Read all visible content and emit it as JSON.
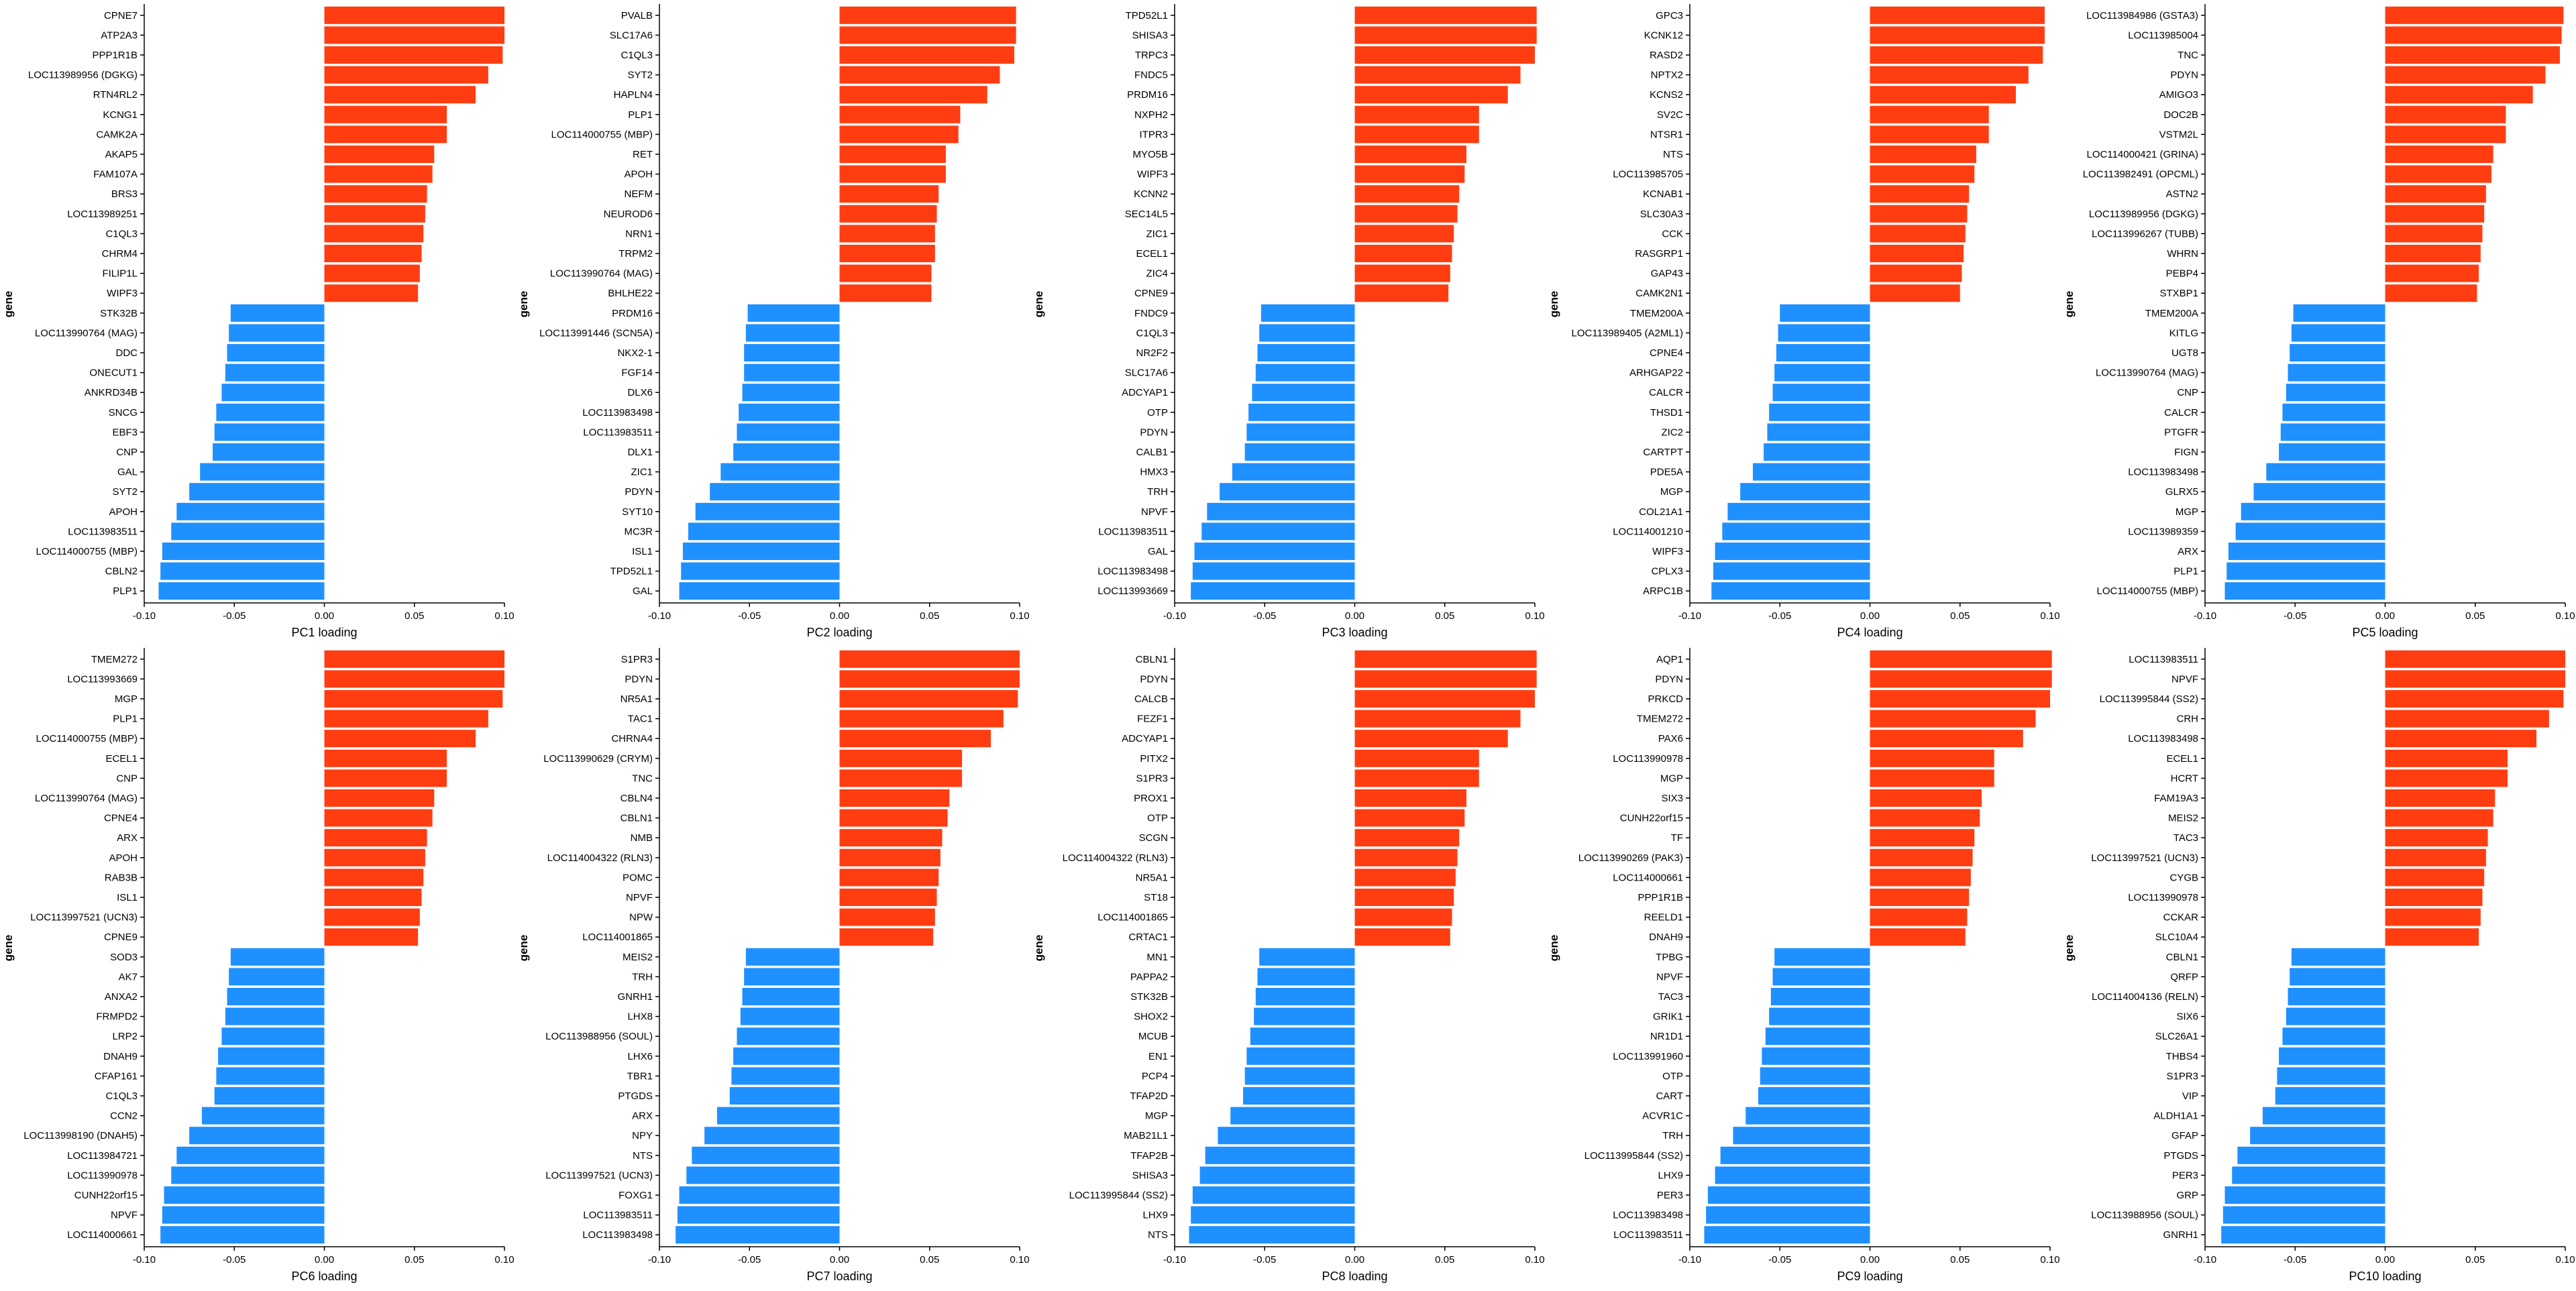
{
  "colors": {
    "positive": "#ff3d11",
    "negative": "#1e90ff",
    "axis": "#000000"
  },
  "chart_data": [
    {
      "type": "bar",
      "orientation": "horizontal",
      "xlabel": "PC1 loading",
      "ylabel": "gene",
      "xlim": [
        -0.1,
        0.1
      ],
      "xticks": [
        -0.1,
        -0.05,
        0.0,
        0.05,
        0.1
      ],
      "xtick_labels": [
        "-0.10",
        "-0.05",
        "0.00",
        "0.05",
        "0.10"
      ],
      "genes": [
        "CPNE7",
        "ATP2A3",
        "PPP1R1B",
        "LOC113989956 (DGKG)",
        "RTN4RL2",
        "KCNG1",
        "CAMK2A",
        "AKAP5",
        "FAM107A",
        "BRS3",
        "LOC113989251",
        "C1QL3",
        "CHRM4",
        "FILIP1L",
        "WIPF3",
        "STK32B",
        "LOC113990764 (MAG)",
        "DDC",
        "ONECUT1",
        "ANKRD34B",
        "SNCG",
        "EBF3",
        "CNP",
        "GAL",
        "SYT2",
        "APOH",
        "LOC113983511",
        "LOC114000755 (MBP)",
        "CBLN2",
        "PLP1"
      ],
      "values": [
        0.1,
        0.1,
        0.099,
        0.091,
        0.084,
        0.068,
        0.068,
        0.061,
        0.06,
        0.057,
        0.056,
        0.055,
        0.054,
        0.053,
        0.052,
        -0.052,
        -0.053,
        -0.054,
        -0.055,
        -0.057,
        -0.06,
        -0.061,
        -0.062,
        -0.069,
        -0.075,
        -0.082,
        -0.085,
        -0.09,
        -0.091,
        -0.092
      ]
    },
    {
      "type": "bar",
      "orientation": "horizontal",
      "xlabel": "PC2 loading",
      "ylabel": "gene",
      "xlim": [
        -0.1,
        0.1
      ],
      "xticks": [
        -0.1,
        -0.05,
        0.0,
        0.05,
        0.1
      ],
      "xtick_labels": [
        "-0.10",
        "-0.05",
        "0.00",
        "0.05",
        "0.10"
      ],
      "genes": [
        "PVALB",
        "SLC17A6",
        "C1QL3",
        "SYT2",
        "HAPLN4",
        "PLP1",
        "LOC114000755 (MBP)",
        "RET",
        "APOH",
        "NEFM",
        "NEUROD6",
        "NRN1",
        "TRPM2",
        "LOC113990764 (MAG)",
        "BHLHE22",
        "PRDM16",
        "LOC113991446 (SCN5A)",
        "NKX2-1",
        "FGF14",
        "DLX6",
        "LOC113983498",
        "LOC113983511",
        "DLX1",
        "ZIC1",
        "PDYN",
        "SYT10",
        "MC3R",
        "ISL1",
        "TPD52L1",
        "GAL"
      ],
      "values": [
        0.098,
        0.098,
        0.097,
        0.089,
        0.082,
        0.067,
        0.066,
        0.059,
        0.059,
        0.055,
        0.054,
        0.053,
        0.053,
        0.051,
        0.051,
        -0.051,
        -0.052,
        -0.053,
        -0.053,
        -0.054,
        -0.056,
        -0.057,
        -0.059,
        -0.066,
        -0.072,
        -0.08,
        -0.084,
        -0.087,
        -0.088,
        -0.089
      ]
    },
    {
      "type": "bar",
      "orientation": "horizontal",
      "xlabel": "PC3 loading",
      "ylabel": "gene",
      "xlim": [
        -0.1,
        0.1
      ],
      "xticks": [
        -0.1,
        -0.05,
        0.0,
        0.05,
        0.1
      ],
      "xtick_labels": [
        "-0.10",
        "-0.05",
        "0.00",
        "0.05",
        "0.10"
      ],
      "genes": [
        "TPD52L1",
        "SHISA3",
        "TRPC3",
        "FNDC5",
        "PRDM16",
        "NXPH2",
        "ITPR3",
        "MYO5B",
        "WIPF3",
        "KCNN2",
        "SEC14L5",
        "ZIC1",
        "ECEL1",
        "ZIC4",
        "CPNE9",
        "FNDC9",
        "C1QL3",
        "NR2F2",
        "SLC17A6",
        "ADCYAP1",
        "OTP",
        "PDYN",
        "CALB1",
        "HMX3",
        "TRH",
        "NPVF",
        "LOC113983511",
        "GAL",
        "LOC113983498",
        "LOC113993669"
      ],
      "values": [
        0.101,
        0.101,
        0.1,
        0.092,
        0.085,
        0.069,
        0.069,
        0.062,
        0.061,
        0.058,
        0.057,
        0.055,
        0.054,
        0.053,
        0.052,
        -0.052,
        -0.053,
        -0.054,
        -0.055,
        -0.057,
        -0.059,
        -0.06,
        -0.061,
        -0.068,
        -0.075,
        -0.082,
        -0.085,
        -0.089,
        -0.09,
        -0.091
      ]
    },
    {
      "type": "bar",
      "orientation": "horizontal",
      "xlabel": "PC4 loading",
      "ylabel": "gene",
      "xlim": [
        -0.1,
        0.1
      ],
      "xticks": [
        -0.1,
        -0.05,
        0.0,
        0.05,
        0.1
      ],
      "xtick_labels": [
        "-0.10",
        "-0.05",
        "0.00",
        "0.05",
        "0.10"
      ],
      "genes": [
        "GPC3",
        "KCNK12",
        "RASD2",
        "NPTX2",
        "KCNS2",
        "SV2C",
        "NTSR1",
        "NTS",
        "LOC113985705",
        "KCNAB1",
        "SLC30A3",
        "CCK",
        "RASGRP1",
        "GAP43",
        "CAMK2N1",
        "TMEM200A",
        "LOC113989405 (A2ML1)",
        "CPNE4",
        "ARHGAP22",
        "CALCR",
        "THSD1",
        "ZIC2",
        "CARTPT",
        "PDE5A",
        "MGP",
        "COL21A1",
        "LOC114001210",
        "WIPF3",
        "CPLX3",
        "ARPC1B"
      ],
      "values": [
        0.097,
        0.097,
        0.096,
        0.088,
        0.081,
        0.066,
        0.066,
        0.059,
        0.058,
        0.055,
        0.054,
        0.053,
        0.052,
        0.051,
        0.05,
        -0.05,
        -0.051,
        -0.052,
        -0.053,
        -0.054,
        -0.056,
        -0.057,
        -0.059,
        -0.065,
        -0.072,
        -0.079,
        -0.082,
        -0.086,
        -0.087,
        -0.088
      ]
    },
    {
      "type": "bar",
      "orientation": "horizontal",
      "xlabel": "PC5 loading",
      "ylabel": "gene",
      "xlim": [
        -0.1,
        0.1
      ],
      "xticks": [
        -0.1,
        -0.05,
        0.0,
        0.05,
        0.1
      ],
      "xtick_labels": [
        "-0.10",
        "-0.05",
        "0.00",
        "0.05",
        "0.10"
      ],
      "genes": [
        "LOC113984986 (GSTA3)",
        "LOC113985004",
        "TNC",
        "PDYN",
        "AMIGO3",
        "DOC2B",
        "VSTM2L",
        "LOC114000421 (GRINA)",
        "LOC113982491 (OPCML)",
        "ASTN2",
        "LOC113989956 (DGKG)",
        "LOC113996267 (TUBB)",
        "WHRN",
        "PEBP4",
        "STXBP1",
        "TMEM200A",
        "KITLG",
        "UGT8",
        "LOC113990764 (MAG)",
        "CNP",
        "CALCR",
        "PTGFR",
        "FIGN",
        "LOC113983498",
        "GLRX5",
        "MGP",
        "LOC113989359",
        "ARX",
        "PLP1",
        "LOC114000755 (MBP)"
      ],
      "values": [
        0.099,
        0.098,
        0.097,
        0.089,
        0.082,
        0.067,
        0.067,
        0.06,
        0.059,
        0.056,
        0.055,
        0.054,
        0.053,
        0.052,
        0.051,
        -0.051,
        -0.052,
        -0.053,
        -0.054,
        -0.055,
        -0.057,
        -0.058,
        -0.059,
        -0.066,
        -0.073,
        -0.08,
        -0.083,
        -0.087,
        -0.088,
        -0.089
      ]
    },
    {
      "type": "bar",
      "orientation": "horizontal",
      "xlabel": "PC6 loading",
      "ylabel": "gene",
      "xlim": [
        -0.1,
        0.1
      ],
      "xticks": [
        -0.1,
        -0.05,
        0.0,
        0.05,
        0.1
      ],
      "xtick_labels": [
        "-0.10",
        "-0.05",
        "0.00",
        "0.05",
        "0.10"
      ],
      "genes": [
        "TMEM272",
        "LOC113993669",
        "MGP",
        "PLP1",
        "LOC114000755 (MBP)",
        "ECEL1",
        "CNP",
        "LOC113990764 (MAG)",
        "CPNE4",
        "ARX",
        "APOH",
        "RAB3B",
        "ISL1",
        "LOC113997521 (UCN3)",
        "CPNE9",
        "SOD3",
        "AK7",
        "ANXA2",
        "FRMPD2",
        "LRP2",
        "DNAH9",
        "CFAP161",
        "C1QL3",
        "CCN2",
        "LOC113998190 (DNAH5)",
        "LOC113984721",
        "LOC113990978",
        "CUNH22orf15",
        "NPVF",
        "LOC114000661"
      ],
      "values": [
        0.1,
        0.1,
        0.099,
        0.091,
        0.084,
        0.068,
        0.068,
        0.061,
        0.06,
        0.057,
        0.056,
        0.055,
        0.054,
        0.053,
        0.052,
        -0.052,
        -0.053,
        -0.054,
        -0.055,
        -0.057,
        -0.059,
        -0.06,
        -0.061,
        -0.068,
        -0.075,
        -0.082,
        -0.085,
        -0.089,
        -0.09,
        -0.091
      ]
    },
    {
      "type": "bar",
      "orientation": "horizontal",
      "xlabel": "PC7 loading",
      "ylabel": "gene",
      "xlim": [
        -0.1,
        0.1
      ],
      "xticks": [
        -0.1,
        -0.05,
        0.0,
        0.05,
        0.1
      ],
      "xtick_labels": [
        "-0.10",
        "-0.05",
        "0.00",
        "0.05",
        "0.10"
      ],
      "genes": [
        "S1PR3",
        "PDYN",
        "NR5A1",
        "TAC1",
        "CHRNA4",
        "LOC113990629 (CRYM)",
        "TNC",
        "CBLN4",
        "CBLN1",
        "NMB",
        "LOC114004322 (RLN3)",
        "POMC",
        "NPVF",
        "NPW",
        "LOC114001865",
        "MEIS2",
        "TRH",
        "GNRH1",
        "LHX8",
        "LOC113988956 (SOUL)",
        "LHX6",
        "TBR1",
        "PTGDS",
        "ARX",
        "NPY",
        "NTS",
        "LOC113997521 (UCN3)",
        "FOXG1",
        "LOC113983511",
        "LOC113983498"
      ],
      "values": [
        0.1,
        0.1,
        0.099,
        0.091,
        0.084,
        0.068,
        0.068,
        0.061,
        0.06,
        0.057,
        0.056,
        0.055,
        0.054,
        0.053,
        0.052,
        -0.052,
        -0.053,
        -0.054,
        -0.055,
        -0.057,
        -0.059,
        -0.06,
        -0.061,
        -0.068,
        -0.075,
        -0.082,
        -0.085,
        -0.089,
        -0.09,
        -0.091
      ]
    },
    {
      "type": "bar",
      "orientation": "horizontal",
      "xlabel": "PC8 loading",
      "ylabel": "gene",
      "xlim": [
        -0.1,
        0.1
      ],
      "xticks": [
        -0.1,
        -0.05,
        0.0,
        0.05,
        0.1
      ],
      "xtick_labels": [
        "-0.10",
        "-0.05",
        "0.00",
        "0.05",
        "0.10"
      ],
      "genes": [
        "CBLN1",
        "PDYN",
        "CALCB",
        "FEZF1",
        "ADCYAP1",
        "PITX2",
        "S1PR3",
        "PROX1",
        "OTP",
        "SCGN",
        "LOC114004322 (RLN3)",
        "NR5A1",
        "ST18",
        "LOC114001865",
        "CRTAC1",
        "MN1",
        "PAPPA2",
        "STK32B",
        "SHOX2",
        "MCUB",
        "EN1",
        "PCP4",
        "TFAP2D",
        "MGP",
        "MAB21L1",
        "TFAP2B",
        "SHISA3",
        "LOC113995844 (SS2)",
        "LHX9",
        "NTS"
      ],
      "values": [
        0.101,
        0.101,
        0.1,
        0.092,
        0.085,
        0.069,
        0.069,
        0.062,
        0.061,
        0.058,
        0.057,
        0.056,
        0.055,
        0.054,
        0.053,
        -0.053,
        -0.054,
        -0.055,
        -0.056,
        -0.058,
        -0.06,
        -0.061,
        -0.062,
        -0.069,
        -0.076,
        -0.083,
        -0.086,
        -0.09,
        -0.091,
        -0.092
      ]
    },
    {
      "type": "bar",
      "orientation": "horizontal",
      "xlabel": "PC9 loading",
      "ylabel": "gene",
      "xlim": [
        -0.1,
        0.1
      ],
      "xticks": [
        -0.1,
        -0.05,
        0.0,
        0.05,
        0.1
      ],
      "xtick_labels": [
        "-0.10",
        "-0.05",
        "0.00",
        "0.05",
        "0.10"
      ],
      "genes": [
        "AQP1",
        "PDYN",
        "PRKCD",
        "TMEM272",
        "PAX6",
        "LOC113990978",
        "MGP",
        "SIX3",
        "CUNH22orf15",
        "TF",
        "LOC113990269 (PAK3)",
        "LOC114000661",
        "PPP1R1B",
        "REELD1",
        "DNAH9",
        "TPBG",
        "NPVF",
        "TAC3",
        "GRIK1",
        "NR1D1",
        "LOC113991960",
        "OTP",
        "CART",
        "ACVR1C",
        "TRH",
        "LOC113995844 (SS2)",
        "LHX9",
        "PER3",
        "LOC113983498",
        "LOC113983511"
      ],
      "values": [
        0.101,
        0.101,
        0.1,
        0.092,
        0.085,
        0.069,
        0.069,
        0.062,
        0.061,
        0.058,
        0.057,
        0.056,
        0.055,
        0.054,
        0.053,
        -0.053,
        -0.054,
        -0.055,
        -0.056,
        -0.058,
        -0.06,
        -0.061,
        -0.062,
        -0.069,
        -0.076,
        -0.083,
        -0.086,
        -0.09,
        -0.091,
        -0.092
      ]
    },
    {
      "type": "bar",
      "orientation": "horizontal",
      "xlabel": "PC10 loading",
      "ylabel": "gene",
      "xlim": [
        -0.1,
        0.1
      ],
      "xticks": [
        -0.1,
        -0.05,
        0.0,
        0.05,
        0.1
      ],
      "xtick_labels": [
        "-0.10",
        "-0.05",
        "0.00",
        "0.05",
        "0.10"
      ],
      "genes": [
        "LOC113983511",
        "NPVF",
        "LOC113995844 (SS2)",
        "CRH",
        "LOC113983498",
        "ECEL1",
        "HCRT",
        "FAM19A3",
        "MEIS2",
        "TAC3",
        "LOC113997521 (UCN3)",
        "CYGB",
        "LOC113990978",
        "CCKAR",
        "SLC10A4",
        "CBLN1",
        "QRFP",
        "LOC114004136 (RELN)",
        "SIX6",
        "SLC26A1",
        "THBS4",
        "S1PR3",
        "VIP",
        "ALDH1A1",
        "GFAP",
        "PTGDS",
        "PER3",
        "GRP",
        "LOC113988956 (SOUL)",
        "GNRH1"
      ],
      "values": [
        0.1,
        0.1,
        0.099,
        0.091,
        0.084,
        0.068,
        0.068,
        0.061,
        0.06,
        0.057,
        0.056,
        0.055,
        0.054,
        0.053,
        0.052,
        -0.052,
        -0.053,
        -0.054,
        -0.055,
        -0.057,
        -0.059,
        -0.06,
        -0.061,
        -0.068,
        -0.075,
        -0.082,
        -0.085,
        -0.089,
        -0.09,
        -0.091
      ]
    }
  ]
}
